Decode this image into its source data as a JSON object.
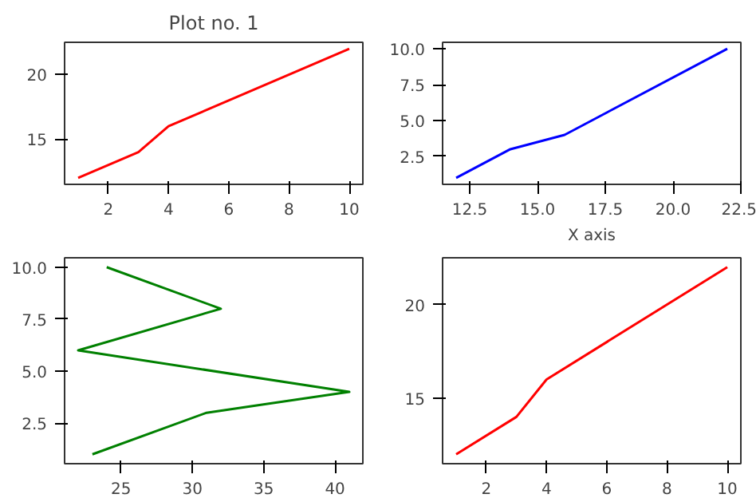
{
  "chart_data": [
    {
      "type": "line",
      "title": "Plot no. 1",
      "x": [
        1,
        3,
        4,
        10
      ],
      "series": [
        {
          "color": "#ff0000",
          "values": [
            12,
            14,
            16,
            22
          ]
        }
      ],
      "xlim": [
        0.55,
        10.45
      ],
      "ylim": [
        11.5,
        22.5
      ],
      "xticks": [
        2,
        4,
        6,
        8,
        10
      ],
      "yticks": [
        15,
        20
      ]
    },
    {
      "type": "line",
      "xlabel": "X axis",
      "x": [
        12,
        14,
        16,
        22
      ],
      "series": [
        {
          "color": "#0000ff",
          "values": [
            1,
            3,
            4,
            10
          ]
        }
      ],
      "xlim": [
        11.5,
        22.5
      ],
      "ylim": [
        0.55,
        10.45
      ],
      "xticks": [
        {
          "value": 12.5,
          "label": "12.5"
        },
        {
          "value": 15,
          "label": "15.0"
        },
        {
          "value": 17.5,
          "label": "17.5"
        },
        {
          "value": 20,
          "label": "20.0"
        },
        {
          "value": 22.5,
          "label": "22.5"
        }
      ],
      "yticks": [
        {
          "value": 2.5,
          "label": "2.5"
        },
        {
          "value": 5,
          "label": "5.0"
        },
        {
          "value": 7.5,
          "label": "7.5"
        },
        {
          "value": 10,
          "label": "10.0"
        }
      ]
    },
    {
      "type": "line",
      "x": [
        23,
        31,
        41,
        22,
        32,
        24
      ],
      "series": [
        {
          "color": "#008000",
          "values": [
            1,
            3,
            4,
            6,
            8,
            10
          ]
        }
      ],
      "xlim": [
        21.05,
        41.95
      ],
      "ylim": [
        0.55,
        10.45
      ],
      "xticks": [
        25,
        30,
        35,
        40
      ],
      "yticks": [
        {
          "value": 2.5,
          "label": "2.5"
        },
        {
          "value": 5,
          "label": "5.0"
        },
        {
          "value": 7.5,
          "label": "7.5"
        },
        {
          "value": 10,
          "label": "10.0"
        }
      ]
    },
    {
      "type": "line",
      "x": [
        1,
        3,
        4,
        10
      ],
      "series": [
        {
          "color": "#ff0000",
          "values": [
            12,
            14,
            16,
            22
          ]
        }
      ],
      "xlim": [
        0.55,
        10.45
      ],
      "ylim": [
        11.5,
        22.5
      ],
      "xticks": [
        2,
        4,
        6,
        8,
        10
      ],
      "yticks": [
        15,
        20
      ]
    }
  ]
}
